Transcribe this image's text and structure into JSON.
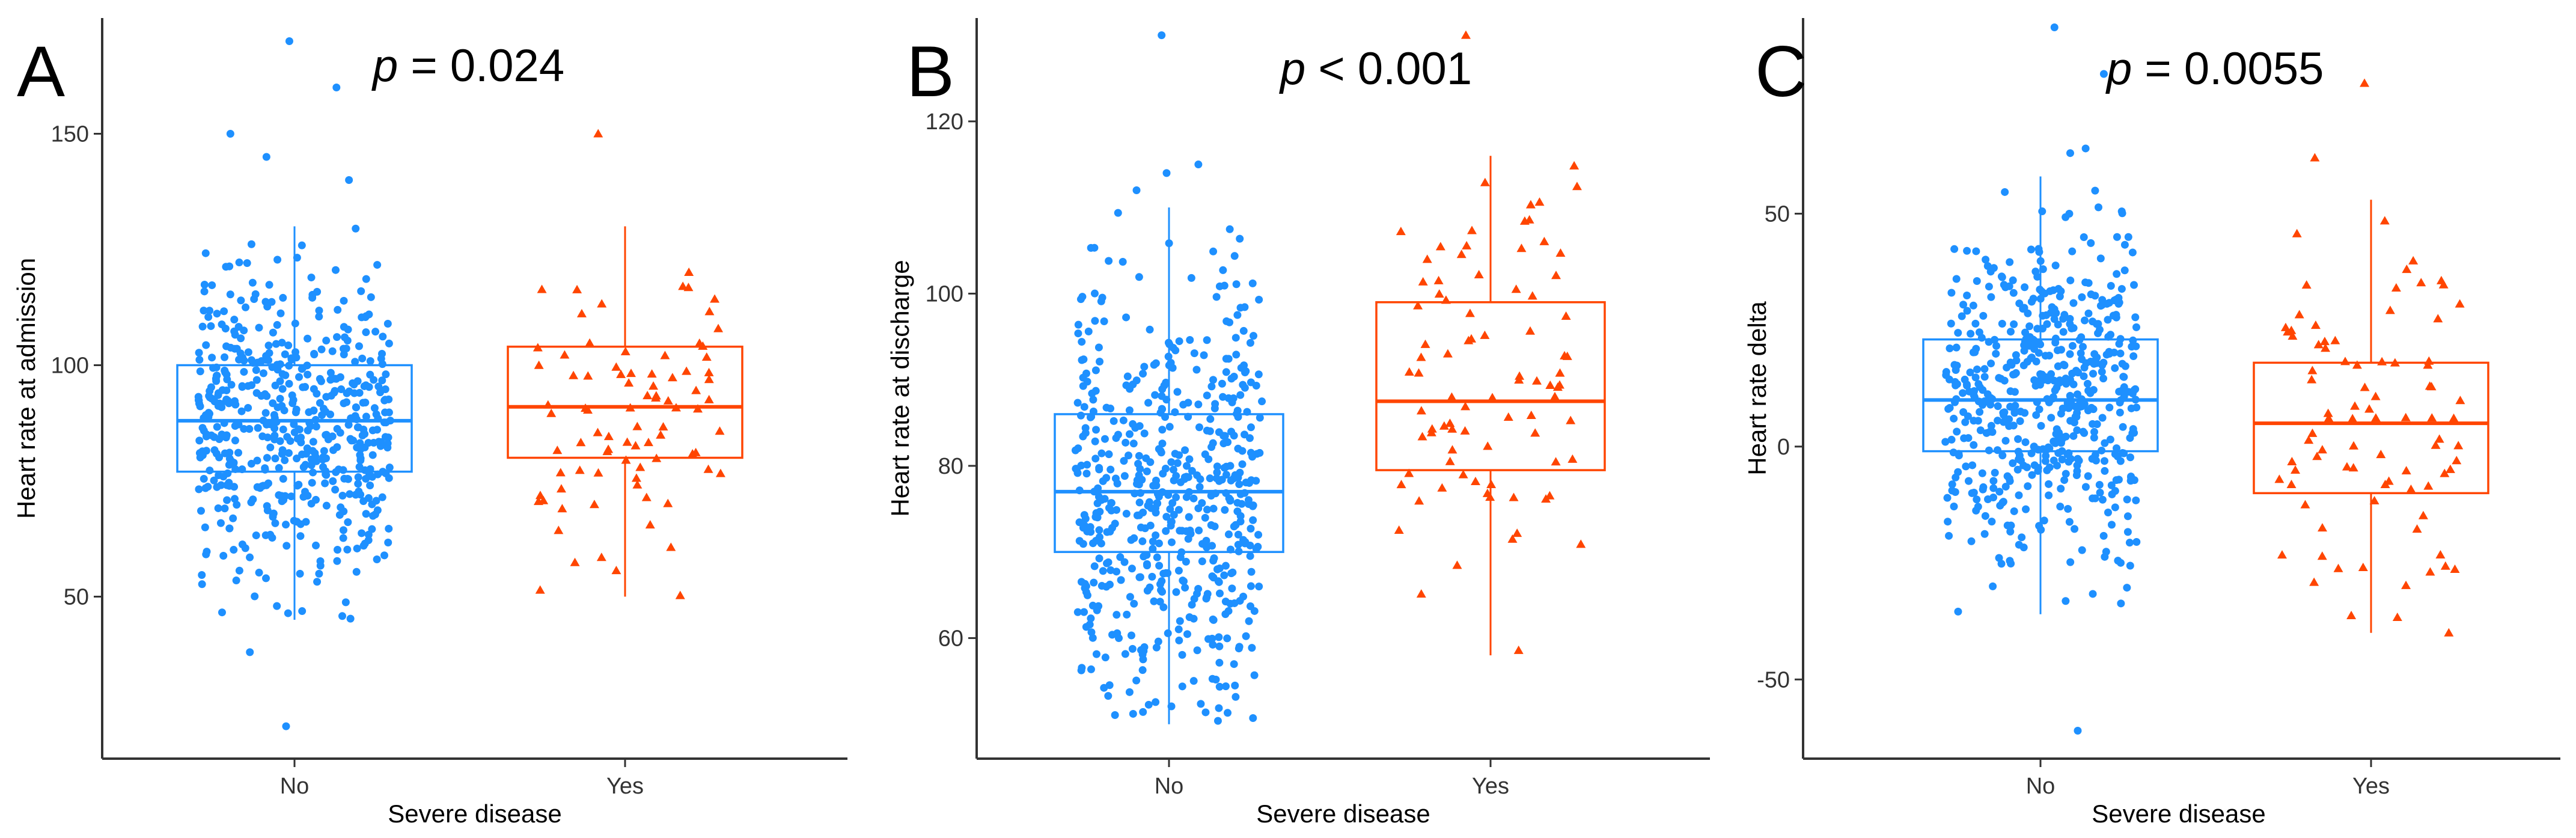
{
  "colors": {
    "no": "#1E90FF",
    "yes": "#FF4500"
  },
  "chart_data": [
    {
      "type": "box",
      "panel_letter": "A",
      "p_label": "p",
      "p_rest": " = 0.024",
      "xlabel": "Severe disease",
      "ylabel": "Heart rate at admission",
      "categories": [
        "No",
        "Yes"
      ],
      "ylim": [
        15,
        175
      ],
      "yticks": [
        50,
        100,
        150
      ],
      "boxes": [
        {
          "name": "No",
          "q1": 77,
          "median": 88,
          "q3": 100,
          "whisker_low": 45,
          "whisker_high": 130,
          "n_points": 560,
          "outliers": [
            170,
            160,
            150,
            145,
            140,
            38,
            22
          ]
        },
        {
          "name": "Yes",
          "q1": 80,
          "median": 91,
          "q3": 104,
          "whisker_low": 50,
          "whisker_high": 130,
          "n_points": 85,
          "outliers": [
            150
          ]
        }
      ]
    },
    {
      "type": "box",
      "panel_letter": "B",
      "p_label": "p",
      "p_rest": " < 0.001",
      "xlabel": "Severe disease",
      "ylabel": "Heart rate at discharge",
      "categories": [
        "No",
        "Yes"
      ],
      "ylim": [
        46,
        132
      ],
      "yticks": [
        60,
        80,
        100,
        120
      ],
      "boxes": [
        {
          "name": "No",
          "q1": 70,
          "median": 77,
          "q3": 86,
          "whisker_low": 50,
          "whisker_high": 110,
          "n_points": 560,
          "outliers": [
            130,
            115,
            114,
            112
          ]
        },
        {
          "name": "Yes",
          "q1": 79.5,
          "median": 87.5,
          "q3": 99,
          "whisker_low": 58,
          "whisker_high": 116,
          "n_points": 85,
          "outliers": [
            130
          ]
        }
      ]
    },
    {
      "type": "box",
      "panel_letter": "C",
      "p_label": "p",
      "p_rest": " = 0.0055",
      "xlabel": "Severe disease",
      "ylabel": "Heart rate delta",
      "categories": [
        "No",
        "Yes"
      ],
      "ylim": [
        -67,
        92
      ],
      "yticks": [
        -50,
        0,
        50
      ],
      "boxes": [
        {
          "name": "No",
          "q1": -1,
          "median": 10,
          "q3": 23,
          "whisker_low": -36,
          "whisker_high": 58,
          "n_points": 560,
          "outliers": [
            90,
            80,
            64,
            63,
            -61
          ]
        },
        {
          "name": "Yes",
          "q1": -10,
          "median": 5,
          "q3": 18,
          "whisker_low": -40,
          "whisker_high": 53,
          "n_points": 85,
          "outliers": [
            78,
            62
          ]
        }
      ]
    }
  ]
}
